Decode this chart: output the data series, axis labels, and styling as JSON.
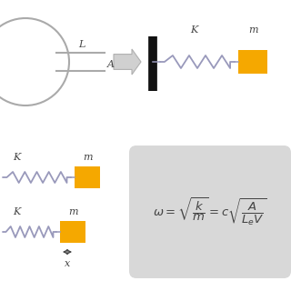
{
  "bg_color": "#ffffff",
  "gold_color": "#F5A800",
  "spring_color": "#9999bb",
  "gray_color": "#aaaaaa",
  "dark_color": "#444444",
  "wall_color": "#111111",
  "arrow_fill": "#cccccc",
  "arrow_edge": "#aaaaaa",
  "formula_bg": "#d8d8d8",
  "label_L": "L",
  "label_A": "A",
  "label_K": "K",
  "label_m": "m",
  "label_x": "x"
}
